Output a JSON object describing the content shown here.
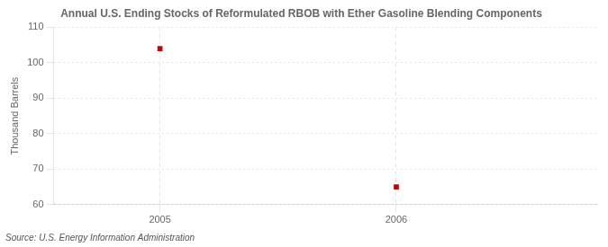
{
  "chart_data": {
    "type": "scatter",
    "title": "Annual U.S. Ending Stocks of Reformulated RBOB with Ether Gasoline Blending Components",
    "ylabel": "Thousand Barrels",
    "source": "Source: U.S. Energy Information Administration",
    "x": [
      2005,
      2006
    ],
    "values": [
      104,
      65
    ],
    "color": "#CC0000",
    "marker": "square",
    "xlim": [
      2004.55,
      2006.85
    ],
    "ylim": [
      60,
      110
    ],
    "xticks": [
      2005,
      2006
    ],
    "yticks": [
      60,
      70,
      80,
      90,
      100,
      110
    ],
    "grid": true
  }
}
